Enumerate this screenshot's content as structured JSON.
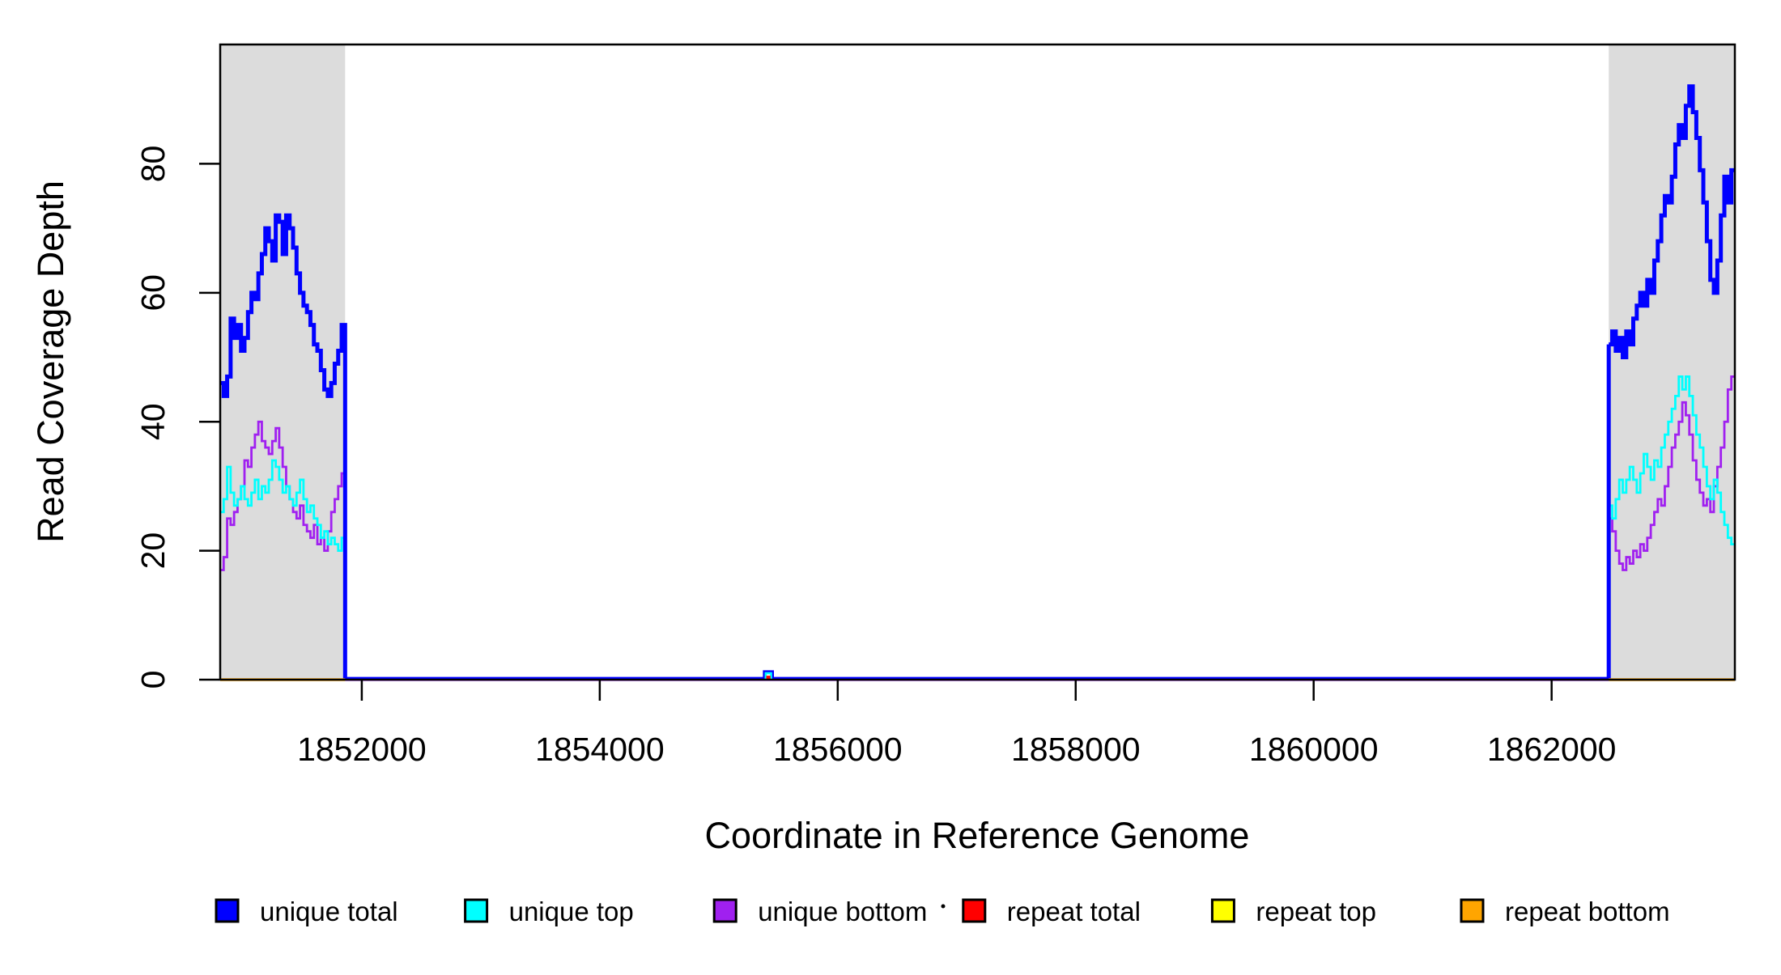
{
  "chart_data": {
    "type": "line",
    "title": "",
    "xlabel": "Coordinate in Reference Genome",
    "ylabel": "Read Coverage Depth",
    "x_domain": [
      1850810,
      1863540
    ],
    "y_domain": [
      0,
      98.5
    ],
    "x_ticks": [
      1852000,
      1854000,
      1856000,
      1858000,
      1860000,
      1862000
    ],
    "y_ticks": [
      0,
      20,
      40,
      60,
      80
    ],
    "grid": false,
    "legend_position": "bottom",
    "line_style": "step",
    "shaded_regions": [
      {
        "x0": 1850810,
        "x1": 1851860,
        "color": "#DCDCDC"
      },
      {
        "x0": 1862480,
        "x1": 1863540,
        "color": "#DCDCDC"
      }
    ],
    "regions": {
      "left": [
        1850810,
        1851860
      ],
      "middle": [
        1851860,
        1862480
      ],
      "right": [
        1862480,
        1863540
      ]
    },
    "series": [
      {
        "name": "unique total",
        "color": "#0000FF",
        "line_width": 5,
        "left_values": [
          46,
          44,
          47,
          56,
          53,
          55,
          51,
          53,
          57,
          60,
          59,
          63,
          66,
          70,
          68,
          65,
          72,
          71,
          66,
          72,
          70,
          67,
          63,
          60,
          58,
          57,
          55,
          52,
          51,
          48,
          45,
          44,
          46,
          49,
          51,
          55
        ],
        "middle_value": 0,
        "right_values": [
          52,
          54,
          51,
          53,
          50,
          54,
          52,
          56,
          58,
          60,
          58,
          62,
          60,
          65,
          68,
          72,
          75,
          74,
          78,
          83,
          86,
          84,
          89,
          92,
          88,
          84,
          79,
          74,
          68,
          62,
          60,
          65,
          72,
          78,
          74,
          79
        ]
      },
      {
        "name": "unique top",
        "color": "#00FFFF",
        "line_width": 2.8,
        "left_values": [
          26,
          28,
          33,
          29,
          27,
          28,
          30,
          28,
          27,
          29,
          31,
          28,
          30,
          29,
          31,
          34,
          33,
          31,
          29,
          30,
          28,
          27,
          29,
          31,
          28,
          26,
          27,
          25,
          24,
          22,
          23,
          21,
          22,
          21,
          20,
          22
        ],
        "middle_value": 0,
        "right_values": [
          27,
          25,
          28,
          31,
          29,
          31,
          33,
          31,
          29,
          32,
          35,
          33,
          31,
          34,
          33,
          36,
          38,
          40,
          42,
          44,
          47,
          45,
          47,
          44,
          41,
          38,
          36,
          33,
          30,
          28,
          31,
          29,
          26,
          24,
          22,
          21
        ]
      },
      {
        "name": "unique bottom",
        "color": "#A020F0",
        "line_width": 2.8,
        "left_values": [
          17,
          19,
          25,
          24,
          26,
          28,
          30,
          34,
          33,
          36,
          38,
          40,
          37,
          36,
          35,
          37,
          39,
          36,
          33,
          30,
          28,
          26,
          25,
          27,
          24,
          23,
          22,
          24,
          21,
          22,
          20,
          23,
          26,
          28,
          30,
          32
        ],
        "middle_value": 0,
        "right_values": [
          25,
          23,
          20,
          18,
          17,
          19,
          18,
          20,
          19,
          21,
          20,
          22,
          24,
          26,
          28,
          27,
          30,
          33,
          36,
          38,
          40,
          43,
          41,
          38,
          34,
          31,
          29,
          27,
          28,
          26,
          30,
          33,
          36,
          40,
          45,
          47
        ]
      },
      {
        "name": "repeat total",
        "color": "#FF0000",
        "line_width": 3,
        "left_values": [
          0
        ],
        "middle_value": 0,
        "right_values": [
          0
        ]
      },
      {
        "name": "repeat top",
        "color": "#FFFF00",
        "line_width": 3,
        "left_values": [
          0
        ],
        "middle_value": 0,
        "right_values": [
          0
        ]
      },
      {
        "name": "repeat bottom",
        "color": "#FFA500",
        "line_width": 3.5,
        "left_values": [
          0
        ],
        "middle_value": 0,
        "right_values": [
          0
        ]
      }
    ],
    "blip": {
      "x0": 1855380,
      "x1": 1855455,
      "heights": {
        "unique total": 1.3,
        "unique top": 1.0,
        "repeat total": 0.45
      }
    }
  },
  "legend": {
    "items": [
      {
        "label": "unique total",
        "color": "#0000FF"
      },
      {
        "label": "unique top",
        "color": "#00FFFF"
      },
      {
        "label": "unique bottom",
        "color": "#A020F0"
      },
      {
        "label": "repeat total",
        "color": "#FF0000"
      },
      {
        "label": "repeat top",
        "color": "#FFFF00"
      },
      {
        "label": "repeat bottom",
        "color": "#FFA500"
      }
    ]
  }
}
